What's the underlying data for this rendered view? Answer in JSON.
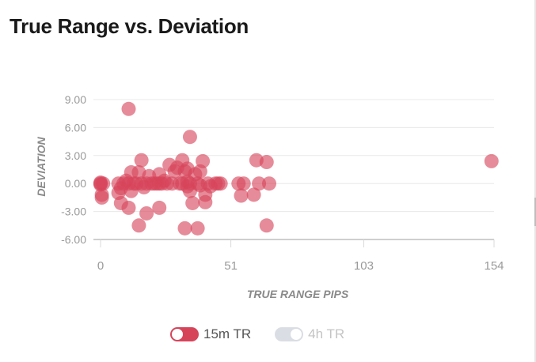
{
  "page": {
    "title": "True Range vs. Deviation"
  },
  "legend": [
    {
      "label": "15m TR",
      "active": true,
      "color": "#d6445a"
    },
    {
      "label": "4h TR",
      "active": false,
      "color": "#dadde3"
    }
  ],
  "chart_data": {
    "type": "scatter",
    "title": "True Range vs. Deviation",
    "xlabel": "TRUE RANGE PIPS",
    "ylabel": "DEVIATION",
    "xlim": [
      0,
      154
    ],
    "ylim": [
      -6,
      9
    ],
    "x_ticks": [
      "0",
      "51",
      "103",
      "154"
    ],
    "x_tick_values": [
      0,
      51,
      103,
      154
    ],
    "y_ticks": [
      "9.00",
      "6.00",
      "3.00",
      "0.00",
      "-3.00",
      "-6.00"
    ],
    "y_tick_values": [
      9,
      6,
      3,
      0,
      -3,
      -6
    ],
    "grid": true,
    "legend_position": "bottom-center",
    "series": [
      {
        "name": "15m TR",
        "color": "#d6445a",
        "points": [
          [
            0,
            0
          ],
          [
            0,
            0.1
          ],
          [
            0,
            -0.1
          ],
          [
            0.5,
            -1.2
          ],
          [
            0.5,
            -1.5
          ],
          [
            1,
            0
          ],
          [
            7,
            -1.0
          ],
          [
            7,
            0
          ],
          [
            8,
            -0.5
          ],
          [
            8,
            -2.1
          ],
          [
            9,
            0
          ],
          [
            10,
            0.3
          ],
          [
            11,
            -2.6
          ],
          [
            11,
            0
          ],
          [
            11,
            8.0
          ],
          [
            12,
            1.2
          ],
          [
            12,
            -0.8
          ],
          [
            13,
            0
          ],
          [
            14,
            0
          ],
          [
            15,
            1.2
          ],
          [
            15,
            -4.5
          ],
          [
            16,
            2.5
          ],
          [
            16,
            0
          ],
          [
            17,
            -0.4
          ],
          [
            18,
            0
          ],
          [
            18,
            -3.2
          ],
          [
            19,
            0.8
          ],
          [
            20,
            0
          ],
          [
            21,
            0
          ],
          [
            22,
            0
          ],
          [
            23,
            0
          ],
          [
            23,
            1.0
          ],
          [
            23,
            -2.6
          ],
          [
            24,
            0
          ],
          [
            25,
            0.3
          ],
          [
            26,
            0
          ],
          [
            27,
            2.0
          ],
          [
            28,
            0
          ],
          [
            29,
            1.3
          ],
          [
            30,
            1.7
          ],
          [
            31,
            0
          ],
          [
            32,
            0
          ],
          [
            32,
            2.5
          ],
          [
            33,
            -4.8
          ],
          [
            33,
            1.3
          ],
          [
            34,
            0.2
          ],
          [
            34,
            1.6
          ],
          [
            34,
            -0.3
          ],
          [
            35,
            0
          ],
          [
            35,
            5.0
          ],
          [
            35,
            -0.8
          ],
          [
            36,
            -2.1
          ],
          [
            37,
            1.0
          ],
          [
            38,
            -4.8
          ],
          [
            38,
            0
          ],
          [
            39,
            1.3
          ],
          [
            39,
            -0.2
          ],
          [
            40,
            2.4
          ],
          [
            41,
            -1.2
          ],
          [
            41,
            -2.0
          ],
          [
            42,
            0
          ],
          [
            43,
            -0.3
          ],
          [
            45,
            0
          ],
          [
            46,
            0
          ],
          [
            47,
            0
          ],
          [
            54,
            0
          ],
          [
            55,
            -1.3
          ],
          [
            56,
            0
          ],
          [
            60,
            -1.2
          ],
          [
            61,
            2.5
          ],
          [
            62,
            0
          ],
          [
            65,
            2.3
          ],
          [
            65,
            -4.5
          ],
          [
            66,
            0
          ],
          [
            153,
            2.4
          ]
        ]
      }
    ]
  }
}
